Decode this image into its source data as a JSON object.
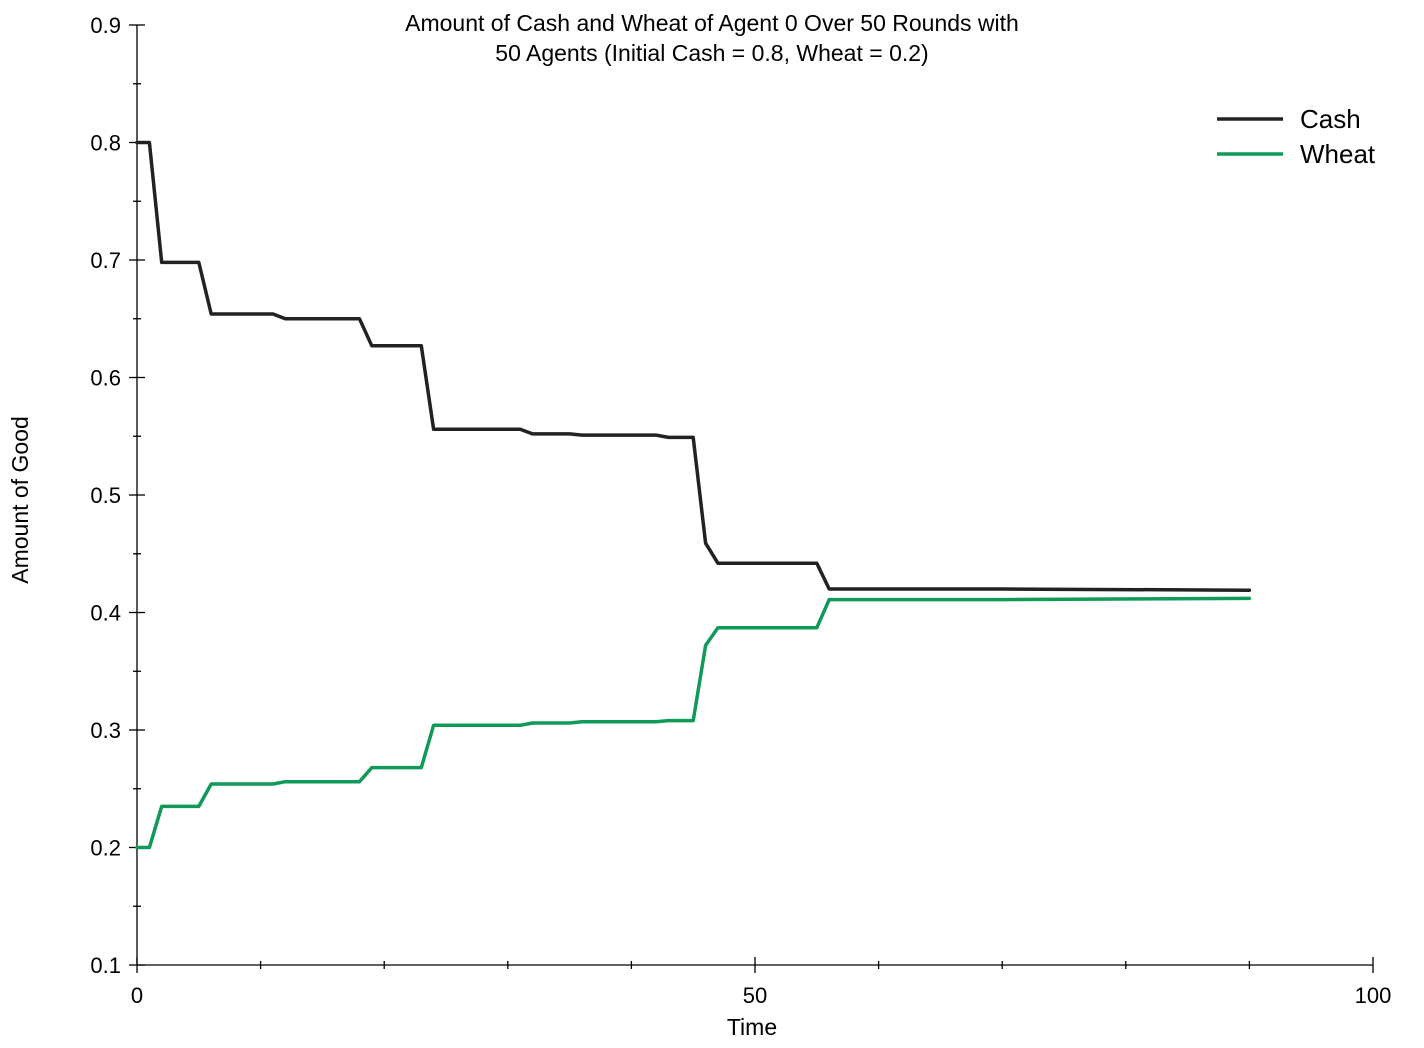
{
  "chart_data": {
    "type": "line",
    "title_lines": [
      "Amount of Cash and Wheat of Agent 0 Over 50 Rounds with",
      "50 Agents (Initial Cash = 0.8, Wheat = 0.2)"
    ],
    "xlabel": "Time",
    "ylabel": "Amount of Good",
    "xlim": [
      0,
      100
    ],
    "ylim": [
      0.1,
      0.9
    ],
    "xticks": [
      0,
      50,
      100
    ],
    "xticks_minor": [
      10,
      20,
      30,
      40,
      60,
      70,
      80,
      90
    ],
    "yticks": [
      0.1,
      0.2,
      0.3,
      0.4,
      0.5,
      0.6,
      0.7,
      0.8,
      0.9
    ],
    "grid": false,
    "legend_position": "top-right",
    "series": [
      {
        "name": "Cash",
        "color": "#222222",
        "x": [
          0,
          1,
          2,
          5,
          6,
          11,
          12,
          18,
          19,
          23,
          24,
          31,
          32,
          35,
          36,
          42,
          43,
          45,
          46,
          47,
          55,
          56,
          70,
          90
        ],
        "y": [
          0.8,
          0.8,
          0.698,
          0.698,
          0.654,
          0.654,
          0.65,
          0.65,
          0.627,
          0.627,
          0.556,
          0.556,
          0.552,
          0.552,
          0.551,
          0.551,
          0.549,
          0.549,
          0.459,
          0.442,
          0.442,
          0.42,
          0.42,
          0.419
        ]
      },
      {
        "name": "Wheat",
        "color": "#119958",
        "x": [
          0,
          1,
          2,
          5,
          6,
          11,
          12,
          18,
          19,
          23,
          24,
          31,
          32,
          35,
          36,
          42,
          43,
          45,
          46,
          47,
          55,
          56,
          70,
          90
        ],
        "y": [
          0.2,
          0.2,
          0.235,
          0.235,
          0.254,
          0.254,
          0.256,
          0.256,
          0.268,
          0.268,
          0.304,
          0.304,
          0.306,
          0.306,
          0.307,
          0.307,
          0.308,
          0.308,
          0.372,
          0.387,
          0.387,
          0.411,
          0.411,
          0.412
        ]
      }
    ]
  }
}
